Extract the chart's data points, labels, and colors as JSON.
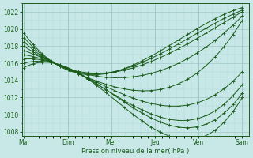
{
  "title": "",
  "xlabel": "Pression niveau de la mer( hPa )",
  "ylabel": "",
  "bg_color": "#c8e8e8",
  "grid_color": "#a0c8c8",
  "line_color": "#1a5c1a",
  "marker_color": "#1a5c1a",
  "ylim": [
    1007.5,
    1023.0
  ],
  "yticks": [
    1008,
    1010,
    1012,
    1014,
    1016,
    1018,
    1020,
    1022
  ],
  "day_labels": [
    "Mar",
    "Dim",
    "Mer",
    "Jeu",
    "Ven",
    "Sam"
  ],
  "day_positions": [
    0,
    1,
    2,
    3,
    4,
    5
  ],
  "figsize": [
    3.2,
    2.0
  ],
  "dpi": 100
}
